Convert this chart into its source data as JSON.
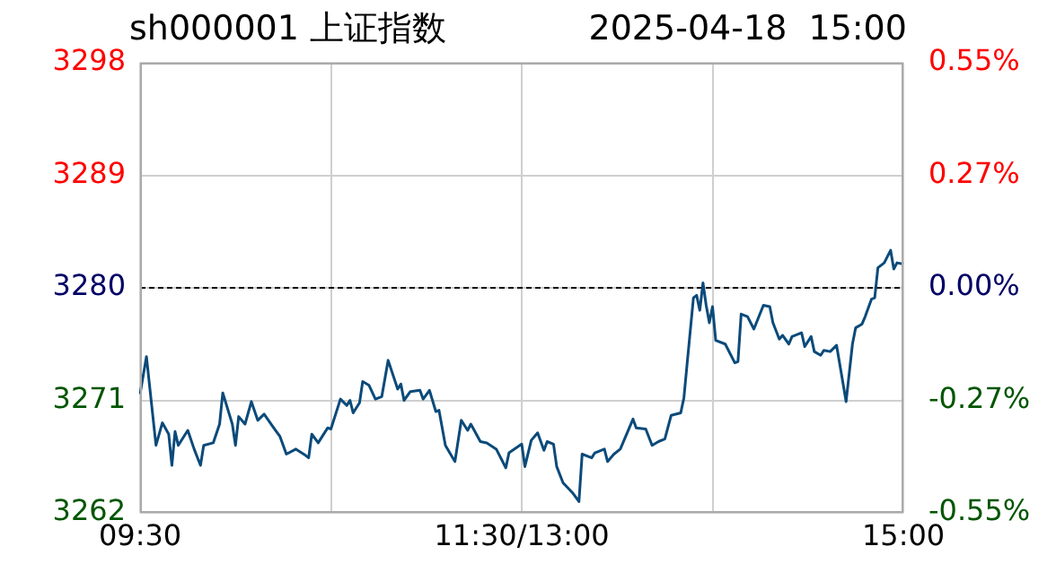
{
  "chart_data": {
    "type": "line",
    "title": "sh000001 上证指数",
    "subtitle": "2025-04-18  15:00",
    "categories": [
      "09:30",
      null,
      null,
      null,
      null,
      null,
      null,
      null,
      null,
      null,
      null,
      null,
      null,
      null,
      null,
      null,
      null,
      null,
      null,
      null,
      null,
      null,
      null,
      null,
      null,
      null,
      null,
      null,
      null,
      null,
      null,
      null,
      null,
      null,
      null,
      null,
      null,
      null,
      null,
      null,
      null,
      null,
      null,
      null,
      null,
      null,
      null,
      null,
      null,
      null,
      null,
      null,
      null,
      null,
      null,
      null,
      null,
      null,
      null,
      null,
      null,
      null,
      null,
      null,
      null,
      null,
      null,
      null,
      null,
      null,
      null,
      null,
      null,
      null,
      null,
      null,
      null,
      null,
      null,
      null,
      null,
      null,
      null,
      null,
      null,
      null,
      null,
      null,
      null,
      null,
      null,
      null,
      null,
      null,
      null,
      null,
      null,
      null,
      null,
      null,
      null,
      null,
      null,
      null,
      null,
      null,
      null,
      null,
      null,
      null,
      null,
      null,
      null,
      null,
      null,
      null,
      null,
      null,
      null,
      null,
      "11:30/13:00",
      null,
      null,
      null,
      null,
      null,
      null,
      null,
      null,
      null,
      null,
      null,
      null,
      null,
      null,
      null,
      null,
      null,
      null,
      null,
      null,
      null,
      null,
      null,
      null,
      null,
      null,
      null,
      null,
      null,
      null,
      null,
      null,
      null,
      null,
      null,
      null,
      null,
      null,
      null,
      null,
      null,
      null,
      null,
      null,
      null,
      null,
      null,
      null,
      null,
      null,
      null,
      null,
      null,
      null,
      null,
      null,
      null,
      null,
      null,
      null,
      null,
      null,
      null,
      null,
      null,
      null,
      null,
      null,
      null,
      null,
      null,
      null,
      null,
      null,
      null,
      null,
      null,
      null,
      null,
      null,
      null,
      null,
      null,
      null,
      null,
      null,
      null,
      null,
      null,
      null,
      null,
      null,
      null,
      null,
      null,
      null,
      null,
      null,
      null,
      null,
      null,
      null,
      null,
      null,
      null,
      null,
      null,
      null,
      null,
      null,
      null,
      null,
      null,
      null,
      null,
      null,
      null,
      null,
      null,
      "15:00"
    ],
    "series": [
      {
        "color": "#0b4a7a",
        "values": [
          3271.5,
          null,
          3274.5,
          null,
          null,
          3267.4,
          null,
          3269.2,
          null,
          3268.3,
          3265.8,
          3268.5,
          3267.4,
          null,
          null,
          3268.6,
          null,
          3267.1,
          null,
          3265.8,
          3267.4,
          null,
          null,
          3267.6,
          null,
          3269.1,
          3271.6,
          null,
          null,
          3269.1,
          3267.4,
          3269.7,
          null,
          3269.1,
          null,
          3270.9,
          null,
          3269.4,
          null,
          3269.9,
          null,
          null,
          3268.8,
          null,
          3268.1,
          null,
          3266.7,
          null,
          null,
          3267.1,
          null,
          null,
          3266.6,
          3266.4,
          3268.3,
          null,
          3267.6,
          null,
          null,
          3268.8,
          3268.7,
          null,
          null,
          3271.1,
          null,
          3270.6,
          3271.0,
          3270.0,
          null,
          3270.8,
          3272.5,
          null,
          3272.2,
          null,
          3271.1,
          null,
          3271.3,
          null,
          3274.2,
          null,
          null,
          3271.9,
          3272.3,
          3271.0,
          null,
          3271.7,
          null,
          null,
          3271.8,
          3271.1,
          null,
          3271.8,
          null,
          3270.1,
          3270.2,
          null,
          3267.4,
          null,
          null,
          3266.1,
          null,
          3269.4,
          null,
          3268.6,
          3269.1,
          null,
          null,
          3267.7,
          null,
          3267.6,
          null,
          null,
          3267.1,
          null,
          null,
          3265.6,
          3266.8,
          null,
          null,
          null,
          3267.5,
          3265.7,
          null,
          3267.8,
          null,
          3268.4,
          null,
          3267.0,
          3267.7,
          null,
          3267.5,
          3265.7,
          null,
          3264.4,
          null,
          null,
          3263.6,
          null,
          3262.9,
          3266.7,
          null,
          null,
          3266.4,
          3266.8,
          null,
          null,
          3267.1,
          3266.1,
          null,
          3266.7,
          null,
          3267.1,
          null,
          null,
          null,
          3269.5,
          3268.8,
          null,
          null,
          3268.7,
          null,
          3267.4,
          null,
          3267.7,
          null,
          3267.9,
          null,
          3269.8,
          null,
          null,
          3270.0,
          3271.2,
          3273.9,
          null,
          3279.2,
          3279.4,
          3278.2,
          3280.4,
          3278.6,
          3277.2,
          3278.5,
          3275.8,
          null,
          null,
          3275.5,
          null,
          null,
          3274.0,
          3274.1,
          3277.9,
          null,
          3277.7,
          null,
          3276.7,
          null,
          null,
          3278.6,
          null,
          3278.5,
          3277.2,
          null,
          3275.9,
          3276.2,
          null,
          3275.5,
          3276.1,
          null,
          null,
          3276.4,
          3275.3,
          null,
          3276.1,
          3274.9,
          null,
          3274.6,
          3275.0,
          null,
          3274.9,
          null,
          3275.4,
          3273.9,
          null,
          3270.9,
          null,
          3275.5,
          3276.8,
          null,
          3277.1,
          3277.7,
          null,
          3279.1,
          3279.2,
          3281.6,
          null,
          3282.0,
          null,
          3283.0,
          3281.5,
          3282.0,
          null,
          3281.9
        ]
      }
    ],
    "ylim": [
      3262,
      3298
    ],
    "yticks": [
      3262,
      3271,
      3280,
      3289,
      3298
    ],
    "y2lim": [
      -0.55,
      0.55
    ],
    "y2ticks": [
      {
        "value": -0.55,
        "label": "-0.55%"
      },
      {
        "value": -0.275,
        "label": "-0.27%"
      },
      {
        "value": 0,
        "label": "0.00%"
      },
      {
        "value": 0.275,
        "label": "0.27%"
      },
      {
        "value": 0.55,
        "label": "0.55%"
      }
    ],
    "ref_lines": [
      {
        "axis": "y",
        "value": 3280,
        "color": "#000000",
        "line_style": "dashed"
      }
    ],
    "grid": true,
    "legend": false,
    "marker": "none",
    "line_style": "solid"
  }
}
